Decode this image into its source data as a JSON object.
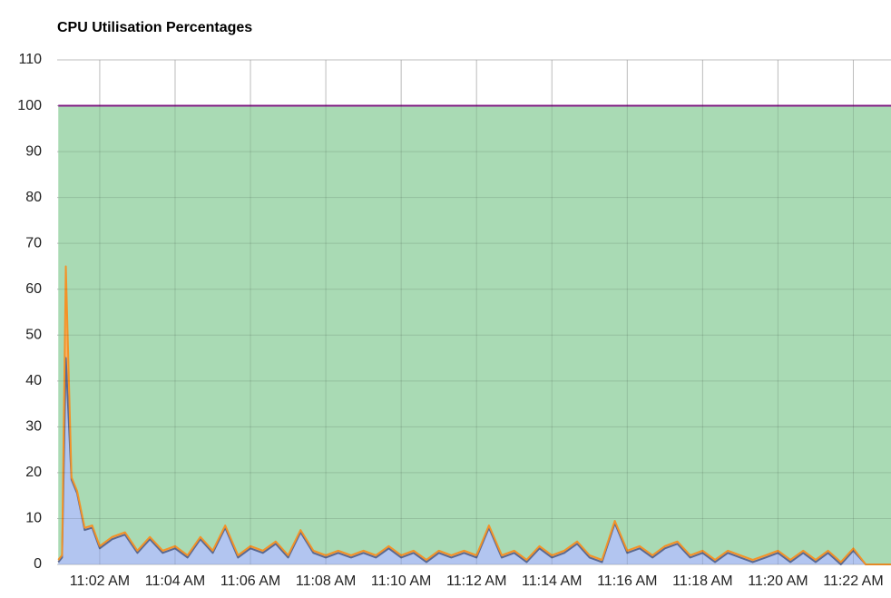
{
  "chart_data": {
    "type": "area",
    "stacked": true,
    "title": "CPU Utilisation Percentages",
    "x": [
      0.9,
      1.0,
      1.1,
      1.25,
      1.4,
      1.6,
      1.8,
      2.0,
      2.33,
      2.67,
      3.0,
      3.33,
      3.67,
      4.0,
      4.33,
      4.67,
      5.0,
      5.33,
      5.67,
      6.0,
      6.33,
      6.67,
      7.0,
      7.33,
      7.67,
      8.0,
      8.33,
      8.67,
      9.0,
      9.33,
      9.67,
      10.0,
      10.33,
      10.67,
      11.0,
      11.33,
      11.67,
      12.0,
      12.33,
      12.67,
      13.0,
      13.33,
      13.67,
      14.0,
      14.33,
      14.67,
      15.0,
      15.33,
      15.67,
      16.0,
      16.33,
      16.67,
      17.0,
      17.33,
      17.67,
      18.0,
      18.33,
      18.67,
      19.0,
      19.33,
      19.67,
      20.0,
      20.33,
      20.67,
      21.0,
      21.33,
      21.67,
      22.0,
      22.33,
      22.67,
      23.0
    ],
    "series": [
      {
        "color": "#b2c5f0",
        "line_color": "#5b6990",
        "values": [
          0.5,
          1.5,
          45,
          18.5,
          15.5,
          7.5,
          8,
          3.5,
          5.5,
          6.5,
          2.5,
          5.5,
          2.5,
          3.5,
          1.5,
          5.5,
          2.5,
          8,
          1.5,
          3.5,
          2.5,
          4.5,
          1.5,
          7,
          2.5,
          1.5,
          2.5,
          1.5,
          2.5,
          1.5,
          3.5,
          1.5,
          2.5,
          0.5,
          2.5,
          1.5,
          2.5,
          1.5,
          8,
          1.5,
          2.5,
          0.5,
          3.5,
          1.5,
          2.5,
          4.5,
          1.5,
          0.5,
          9,
          2.5,
          3.5,
          1.5,
          3.5,
          4.5,
          1.5,
          2.5,
          0.5,
          2.5,
          1.5,
          0.5,
          1.5,
          2.5,
          0.5,
          2.5,
          0.5,
          2.5,
          0,
          3,
          0,
          0,
          0
        ]
      },
      {
        "color": "#f7b36a",
        "line_color": "#f39228",
        "values": [
          0.5,
          0.5,
          20,
          0.5,
          0.5,
          0.5,
          0.5,
          0.5,
          0.5,
          0.5,
          0.5,
          0.5,
          0.5,
          0.5,
          0.5,
          0.5,
          0.5,
          0.5,
          0.5,
          0.5,
          0.5,
          0.5,
          0.5,
          0.5,
          0.5,
          0.5,
          0.5,
          0.5,
          0.5,
          0.5,
          0.5,
          0.5,
          0.5,
          0.5,
          0.5,
          0.5,
          0.5,
          0.5,
          0.5,
          0.5,
          0.5,
          0.5,
          0.5,
          0.5,
          0.5,
          0.5,
          0.5,
          0.5,
          0.5,
          0.5,
          0.5,
          0.5,
          0.5,
          0.5,
          0.5,
          0.5,
          0.5,
          0.5,
          0.5,
          0.5,
          0.5,
          0.5,
          0.5,
          0.5,
          0.5,
          0.5,
          0.5,
          0.5,
          0,
          0,
          0
        ]
      },
      {
        "color": "#a9dab4",
        "line_color": "#8b1f8f",
        "values": [
          99,
          98,
          35,
          81,
          84,
          92,
          91.5,
          96,
          94,
          93,
          97,
          94,
          97,
          96,
          98,
          94,
          97,
          91.5,
          98,
          96,
          97,
          95,
          98,
          92.5,
          97,
          98,
          97,
          98,
          97,
          98,
          96,
          98,
          97,
          99,
          97,
          98,
          97,
          98,
          91.5,
          98,
          97,
          99,
          96,
          98,
          97,
          95,
          98,
          99,
          90.5,
          97,
          96,
          98,
          96,
          95,
          98,
          97,
          99,
          97,
          98,
          99,
          98,
          97,
          99,
          97,
          99,
          97,
          99.5,
          96.5,
          100,
          100,
          100
        ]
      }
    ],
    "xlim": [
      0.87,
      23.0
    ],
    "xticks": [
      {
        "value": 2,
        "label": "11:02 AM"
      },
      {
        "value": 4,
        "label": "11:04 AM"
      },
      {
        "value": 6,
        "label": "11:06 AM"
      },
      {
        "value": 8,
        "label": "11:08 AM"
      },
      {
        "value": 10,
        "label": "11:10 AM"
      },
      {
        "value": 12,
        "label": "11:12 AM"
      },
      {
        "value": 14,
        "label": "11:14 AM"
      },
      {
        "value": 16,
        "label": "11:16 AM"
      },
      {
        "value": 18,
        "label": "11:18 AM"
      },
      {
        "value": 20,
        "label": "11:20 AM"
      },
      {
        "value": 22,
        "label": "11:22 AM"
      }
    ],
    "ylim": [
      0,
      110
    ],
    "yticks": [
      0,
      10,
      20,
      30,
      40,
      50,
      60,
      70,
      80,
      90,
      100,
      110
    ],
    "grid": true
  }
}
